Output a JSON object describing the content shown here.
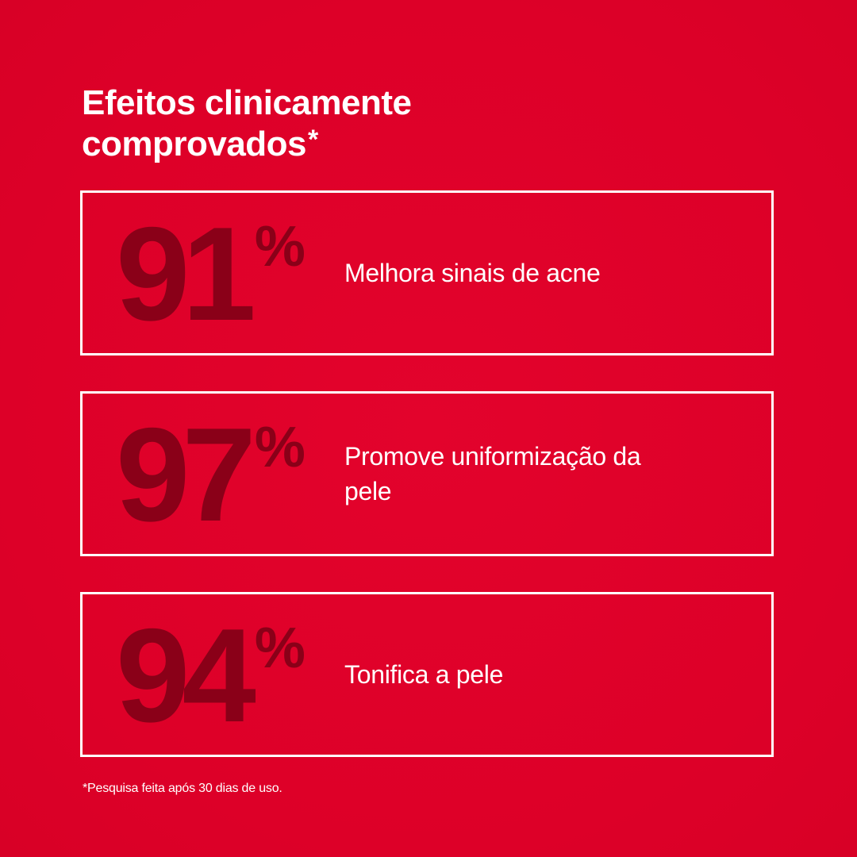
{
  "title": {
    "line1": "Efeitos clinicamente",
    "line2": "comprovados",
    "asterisk": "*"
  },
  "stats": [
    {
      "value": "91",
      "unit": "%",
      "label": "Melhora sinais de acne"
    },
    {
      "value": "97",
      "unit": "%",
      "label": "Promove uniformização da pele"
    },
    {
      "value": "94",
      "unit": "%",
      "label": "Tonifica a pele"
    }
  ],
  "footnote": "*Pesquisa feita após 30 dias de uso.",
  "colors": {
    "background": "#e0002a",
    "stat_number": "#8a0018",
    "text": "#ffffff"
  }
}
